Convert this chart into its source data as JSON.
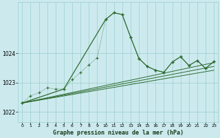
{
  "background_color": "#cceaee",
  "grid_color": "#99cccc",
  "line_color": "#2d6a2d",
  "title": "Graphe pression niveau de la mer (hPa)",
  "ylim": [
    1021.65,
    1025.75
  ],
  "yticks": [
    1022,
    1023,
    1024
  ],
  "xlim": [
    -0.5,
    23.5
  ],
  "xticks": [
    0,
    1,
    2,
    3,
    4,
    5,
    6,
    7,
    8,
    9,
    10,
    11,
    12,
    13,
    14,
    15,
    16,
    17,
    18,
    19,
    20,
    21,
    22,
    23
  ],
  "dotted_x": [
    0,
    1,
    2,
    3,
    4,
    5,
    6,
    7,
    8,
    9,
    10,
    11,
    12,
    13,
    14,
    15,
    16,
    17,
    18,
    19,
    20,
    21,
    22,
    23
  ],
  "dotted_y": [
    1022.3,
    1022.55,
    1022.65,
    1022.82,
    1022.78,
    1022.78,
    1023.1,
    1023.35,
    1023.6,
    1023.85,
    1025.15,
    1025.38,
    1025.32,
    1024.55,
    1023.82,
    1023.55,
    1023.42,
    1023.35,
    1023.7,
    1023.88,
    1023.58,
    1023.75,
    1023.48,
    1023.72
  ],
  "solid_x": [
    0,
    1,
    2,
    3,
    4,
    5,
    6,
    7,
    8,
    9,
    10,
    11,
    12,
    13,
    14,
    15,
    16,
    17,
    18,
    19,
    20,
    21,
    22,
    23
  ],
  "solid_y": [
    1022.3,
    1022.55,
    1022.65,
    1022.82,
    1022.78,
    1022.78,
    1023.1,
    1023.35,
    1023.6,
    1023.85,
    1025.15,
    1025.38,
    1025.32,
    1024.55,
    1023.82,
    1023.55,
    1023.42,
    1023.35,
    1023.7,
    1023.88,
    1023.58,
    1023.75,
    1023.48,
    1023.72
  ],
  "trend_lines": [
    {
      "x": [
        0,
        23
      ],
      "y": [
        1022.3,
        1023.42
      ]
    },
    {
      "x": [
        0,
        23
      ],
      "y": [
        1022.3,
        1023.55
      ]
    },
    {
      "x": [
        0,
        23
      ],
      "y": [
        1022.3,
        1023.68
      ]
    }
  ],
  "key_solid_x": [
    0,
    5,
    10,
    11,
    12,
    13,
    14,
    15,
    16,
    17,
    18,
    19,
    20,
    21,
    22,
    23
  ],
  "key_solid_y": [
    1022.3,
    1022.78,
    1025.15,
    1025.38,
    1025.32,
    1024.55,
    1023.82,
    1023.55,
    1023.42,
    1023.35,
    1023.7,
    1023.88,
    1023.58,
    1023.75,
    1023.48,
    1023.72
  ]
}
